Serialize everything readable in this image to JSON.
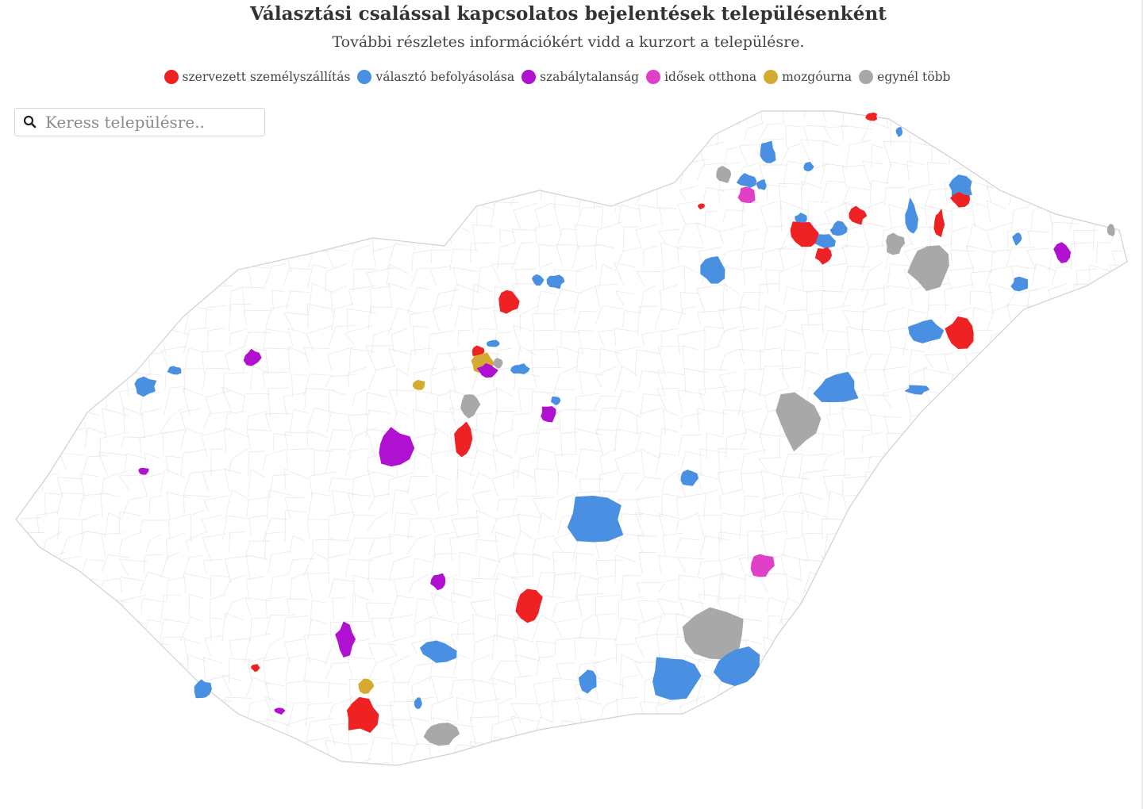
{
  "header": {
    "title": "Választási csalással kapcsolatos bejelentések településenként",
    "subtitle": "További részletes információkért vidd a kurzort a településre."
  },
  "legend": [
    {
      "label": "szervezett személyszállítás",
      "color": "#ee2222",
      "key": "transport"
    },
    {
      "label": "választó befolyásolása",
      "color": "#4a90e2",
      "key": "influence"
    },
    {
      "label": "szabálytalanság",
      "color": "#b010d0",
      "key": "irregular"
    },
    {
      "label": "idősek otthona",
      "color": "#e040c8",
      "key": "elderly"
    },
    {
      "label": "mozgóurna",
      "color": "#d4aa30",
      "key": "mobile"
    },
    {
      "label": "egynél több",
      "color": "#a8a8a8",
      "key": "multiple"
    }
  ],
  "search": {
    "placeholder": "Keress településre.."
  },
  "map": {
    "region_outline_color": "#d0d0d0",
    "background_color": "#ffffff"
  }
}
